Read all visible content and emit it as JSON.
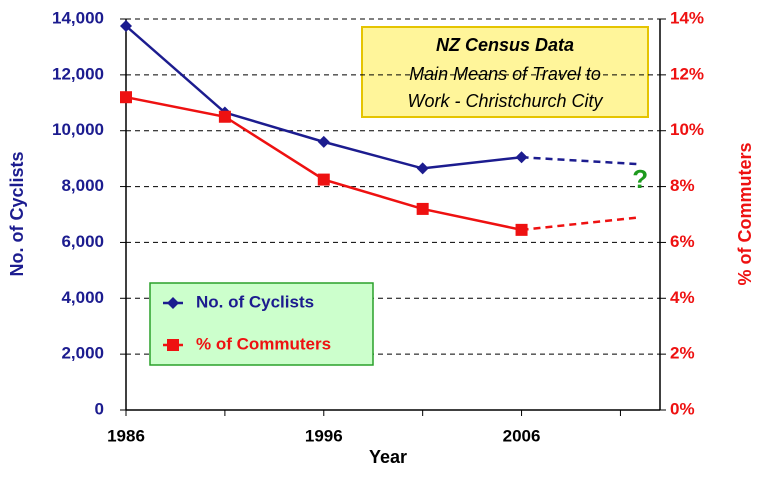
{
  "chart_data": {
    "type": "line",
    "title_box": {
      "title": "NZ Census Data",
      "subtitle_lines": [
        "Main Means of Travel to",
        "Work - Christchurch City"
      ]
    },
    "x_label": "Year",
    "y_label": "No. of Cyclists",
    "y2_label": "% of Commuters",
    "x": [
      1986,
      1991,
      1996,
      2001,
      2006,
      2012
    ],
    "projection_start": 2006,
    "series": [
      {
        "name": "No. of Cyclists",
        "color": "#1c1c8f",
        "marker": "diamond",
        "values": [
          13750,
          10650,
          9600,
          8650,
          9050,
          8800
        ]
      },
      {
        "name": "% of Commuters",
        "color": "#ee1111",
        "marker": "square",
        "axis": "y2",
        "values": [
          11.2,
          10.5,
          8.25,
          7.2,
          6.45,
          6.9
        ]
      }
    ],
    "xlim": [
      1986,
      2013
    ],
    "xticks": [
      1986,
      1996,
      2006
    ],
    "minor_xticks": [
      1991,
      2001,
      2011
    ],
    "ylim": [
      0,
      14000
    ],
    "yticks": [
      0,
      {
        "value": 2000,
        "label": "2,000"
      },
      {
        "value": 4000,
        "label": "4,000"
      },
      {
        "value": 6000,
        "label": "6,000"
      },
      {
        "value": 8000,
        "label": "8,000"
      },
      {
        "value": 10000,
        "label": "10,000"
      },
      {
        "value": 12000,
        "label": "12,000"
      },
      {
        "value": 14000,
        "label": "14,000"
      }
    ],
    "y2lim": [
      0,
      14
    ],
    "y2ticks": [
      {
        "value": 0,
        "label": "0%"
      },
      {
        "value": 2,
        "label": "2%"
      },
      {
        "value": 4,
        "label": "4%"
      },
      {
        "value": 6,
        "label": "6%"
      },
      {
        "value": 8,
        "label": "8%"
      },
      {
        "value": 10,
        "label": "10%"
      },
      {
        "value": 12,
        "label": "12%"
      },
      {
        "value": 14,
        "label": "14%"
      }
    ],
    "grid": true,
    "legend": "lower left",
    "annotation": {
      "text": "?",
      "x": 2012,
      "y": 8200,
      "color": "#1e9a1e"
    }
  }
}
